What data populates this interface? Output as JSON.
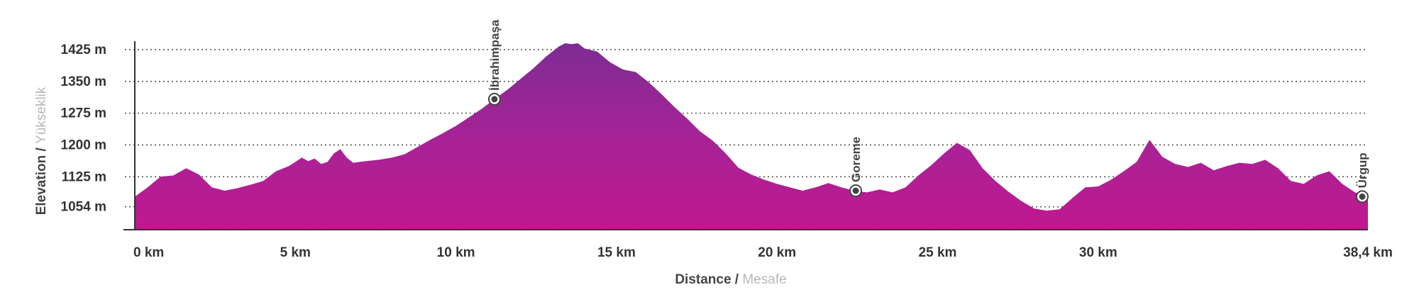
{
  "chart_data": {
    "type": "area",
    "title": "",
    "xlabel": {
      "primary": "Distance",
      "separator": " / ",
      "secondary": "Mesafe"
    },
    "ylabel": {
      "primary": "Elevation",
      "separator": " / ",
      "secondary": "Yükseklik"
    },
    "xlim": [
      0,
      38.4
    ],
    "ylim": [
      1000,
      1445
    ],
    "x_ticks": [
      {
        "value": 0,
        "label": "0 km"
      },
      {
        "value": 5,
        "label": "5 km"
      },
      {
        "value": 10,
        "label": "10 km"
      },
      {
        "value": 15,
        "label": "15 km"
      },
      {
        "value": 20,
        "label": "20 km"
      },
      {
        "value": 25,
        "label": "25 km"
      },
      {
        "value": 30,
        "label": "30 km"
      },
      {
        "value": 38.4,
        "label": "38,4 km"
      }
    ],
    "y_ticks": [
      {
        "value": 1054,
        "label": "1054 m"
      },
      {
        "value": 1125,
        "label": "1125 m"
      },
      {
        "value": 1200,
        "label": "1200 m"
      },
      {
        "value": 1275,
        "label": "1275 m"
      },
      {
        "value": 1350,
        "label": "1350 m"
      },
      {
        "value": 1425,
        "label": "1425 m"
      }
    ],
    "grid": "horizontal dotted",
    "colors": {
      "fill_top": "#7e2c93",
      "fill_bottom": "#c0188f",
      "axis": "#333333",
      "grid": "#555555",
      "marker": "#444444"
    },
    "series": [
      {
        "x": [
          0,
          0.4,
          0.8,
          1.2,
          1.6,
          2.0,
          2.4,
          2.8,
          3.2,
          3.6,
          4.0,
          4.4,
          4.8,
          5.2,
          5.4,
          5.6,
          5.8,
          6.0,
          6.2,
          6.4,
          6.6,
          6.8,
          7.2,
          7.6,
          8.0,
          8.4,
          8.8,
          9.2,
          9.6,
          10.0,
          10.4,
          10.8,
          11.2,
          11.6,
          12.0,
          12.4,
          12.8,
          13.2,
          13.4,
          13.6,
          13.8,
          14.0,
          14.4,
          14.8,
          15.2,
          15.6,
          16.0,
          16.4,
          16.8,
          17.2,
          17.6,
          18.0,
          18.4,
          18.8,
          19.2,
          19.6,
          20.0,
          20.4,
          20.8,
          21.2,
          21.6,
          22.0,
          22.4,
          22.8,
          23.2,
          23.6,
          24.0,
          24.4,
          24.8,
          25.2,
          25.6,
          26.0,
          26.4,
          26.8,
          27.2,
          27.6,
          28.0,
          28.4,
          28.8,
          29.2,
          29.6,
          30.0,
          30.4,
          30.8,
          31.2,
          31.6,
          32.0,
          32.4,
          32.8,
          33.2,
          33.6,
          34.0,
          34.4,
          34.8,
          35.2,
          35.6,
          36.0,
          36.4,
          36.8,
          37.2,
          37.6,
          38.0,
          38.4
        ],
        "y": [
          1078,
          1100,
          1125,
          1128,
          1145,
          1130,
          1100,
          1092,
          1098,
          1106,
          1115,
          1138,
          1150,
          1170,
          1162,
          1168,
          1155,
          1160,
          1180,
          1190,
          1170,
          1158,
          1162,
          1165,
          1170,
          1178,
          1195,
          1212,
          1228,
          1245,
          1265,
          1285,
          1308,
          1330,
          1355,
          1380,
          1408,
          1432,
          1440,
          1438,
          1440,
          1428,
          1420,
          1395,
          1378,
          1372,
          1348,
          1320,
          1290,
          1262,
          1232,
          1210,
          1180,
          1146,
          1130,
          1118,
          1108,
          1100,
          1092,
          1100,
          1110,
          1100,
          1092,
          1088,
          1095,
          1088,
          1100,
          1128,
          1152,
          1180,
          1205,
          1188,
          1145,
          1115,
          1090,
          1068,
          1050,
          1045,
          1048,
          1075,
          1100,
          1102,
          1118,
          1138,
          1160,
          1212,
          1172,
          1155,
          1148,
          1158,
          1140,
          1150,
          1158,
          1155,
          1165,
          1145,
          1115,
          1108,
          1128,
          1138,
          1108,
          1088,
          1078
        ]
      }
    ],
    "waypoints": [
      {
        "name": "İbrahimpaşa",
        "x": 11.2,
        "y": 1308
      },
      {
        "name": "Goreme",
        "x": 22.45,
        "y": 1092
      },
      {
        "name": "Ürgup",
        "x": 38.4,
        "y": 1078
      }
    ]
  }
}
